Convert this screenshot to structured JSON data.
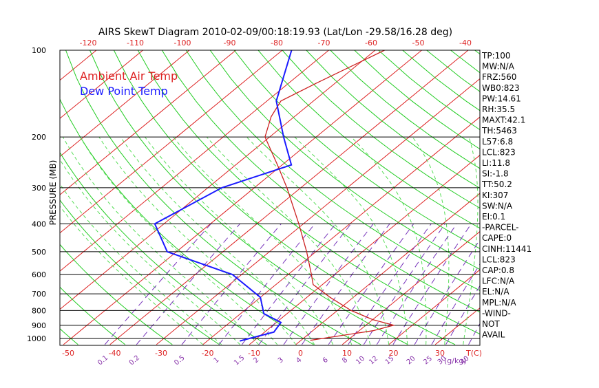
{
  "chart_data": {
    "type": "line",
    "title": "AIRS SkewT Diagram 2010-02-09/00:18:19.93 (Lat/Lon -29.58/16.28 deg)",
    "ylabel": "PRESSURE (MB)",
    "xlabel": "T(C)",
    "mixing_ratio_unit": "(g/kg)",
    "y_scale": "log",
    "ylim": [
      1050,
      100
    ],
    "xlim_bottom": [
      -50,
      40
    ],
    "xlim_top": [
      -120,
      -40
    ],
    "grid": true,
    "pressure_ticks": [
      100,
      200,
      300,
      400,
      500,
      600,
      700,
      800,
      900,
      1000
    ],
    "top_temp_ticks": [
      -120,
      -110,
      -100,
      -90,
      -80,
      -70,
      -60,
      -50,
      -40
    ],
    "bottom_temp_ticks": [
      -50,
      -40,
      -30,
      -20,
      -10,
      0,
      10,
      20,
      30
    ],
    "mixing_ratio_ticks": [
      "0.1",
      "0.2",
      "0.5",
      "1",
      "1.5",
      "2",
      "3",
      "4",
      "6",
      "8",
      "10",
      "12",
      "15",
      "20",
      "25",
      "30",
      "40"
    ],
    "legend": {
      "placement": "top-left",
      "entries": [
        {
          "label": "Ambient Air Temp",
          "color": "#dd2222"
        },
        {
          "label": "Dew Point Temp",
          "color": "#1a1aff"
        }
      ]
    },
    "series": [
      {
        "name": "Ambient Air Temp",
        "color": "#cc2020",
        "points": [
          [
            1015,
            2
          ],
          [
            940,
            13
          ],
          [
            900,
            16
          ],
          [
            860,
            10
          ],
          [
            800,
            3
          ],
          [
            720,
            -5
          ],
          [
            650,
            -12
          ],
          [
            600,
            -15
          ],
          [
            500,
            -22
          ],
          [
            400,
            -31
          ],
          [
            300,
            -43
          ],
          [
            250,
            -51
          ],
          [
            200,
            -61
          ],
          [
            170,
            -65
          ],
          [
            150,
            -67
          ],
          [
            130,
            -64
          ],
          [
            100,
            -58
          ]
        ]
      },
      {
        "name": "Dew Point Temp",
        "color": "#1a1aff",
        "points": [
          [
            1020,
            -13
          ],
          [
            950,
            -8
          ],
          [
            880,
            -9
          ],
          [
            820,
            -15
          ],
          [
            720,
            -20
          ],
          [
            600,
            -32
          ],
          [
            500,
            -52
          ],
          [
            400,
            -62
          ],
          [
            300,
            -57
          ],
          [
            250,
            -48
          ],
          [
            200,
            -57
          ],
          [
            150,
            -68
          ],
          [
            100,
            -78
          ]
        ]
      }
    ],
    "indices": [
      "TP:100",
      "MW:N/A",
      "FRZ:560",
      "WB0:823",
      "PW:14.61",
      "RH:35.5",
      "MAXT:42.1",
      "TH:5463",
      "L57:6.8",
      "LCL:823",
      "LI:11.8",
      "SI:-1.8",
      "TT:50.2",
      "KI:307",
      "SW:N/A",
      "EI:0.1",
      "-PARCEL-",
      "CAPE:0",
      "CINH:11441",
      "LCL:823",
      "CAP:0.8",
      "LFC:N/A",
      "EL:N/A",
      "MPL:N/A",
      "-WIND-",
      "NOT",
      "AVAIL"
    ],
    "colors": {
      "isotherm": "#dd2222",
      "dry_adiabat": "#22cc22",
      "moist_adiabat": "#55dd55",
      "mixing_ratio": "#7733bb",
      "mixing_ratio_label": "#8833aa",
      "temp_tick_label": "#dd2222"
    }
  }
}
